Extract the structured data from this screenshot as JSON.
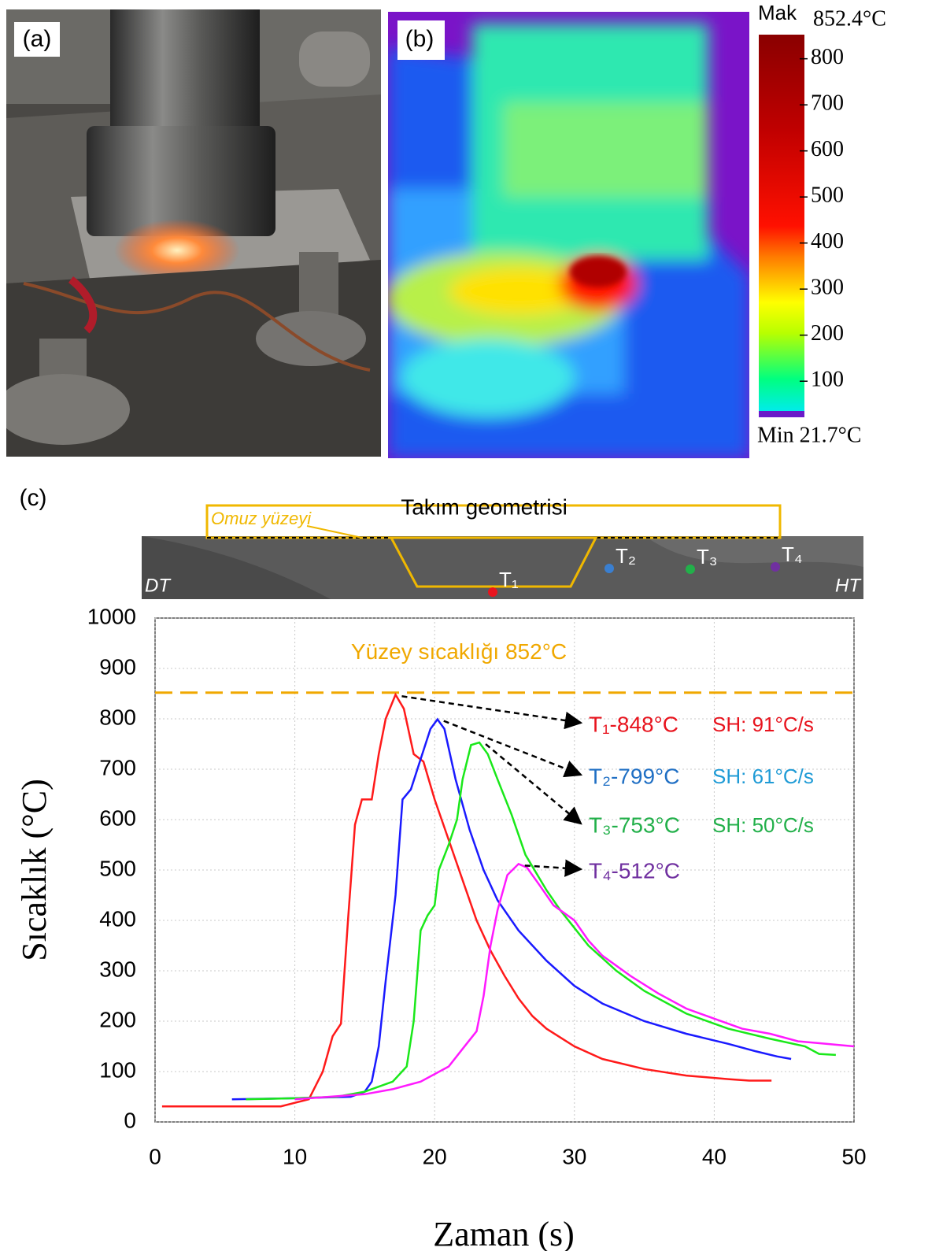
{
  "panels": {
    "a": {
      "label": "(a)"
    },
    "b": {
      "label": "(b)",
      "colorbar": {
        "max_label": "Mak",
        "max_text": "852.4°C",
        "min_text": "Min 21.7°C",
        "lim": [
          21.7,
          852.4
        ],
        "ticks": [
          100,
          200,
          300,
          400,
          500,
          600,
          700,
          800
        ]
      }
    },
    "c": {
      "label": "(c)",
      "geometry": {
        "title": "Takım geometrisi",
        "shoulder": "Omuz yüzeyi",
        "left": "DT",
        "right": "HT"
      }
    }
  },
  "chart_data": {
    "type": "line",
    "xlabel": "Zaman (s)",
    "ylabel": "Sıcaklık (°C)",
    "xlim": [
      0,
      50
    ],
    "ylim": [
      0,
      1000
    ],
    "xticks": [
      0,
      10,
      20,
      30,
      40,
      50
    ],
    "yticks": [
      0,
      100,
      200,
      300,
      400,
      500,
      600,
      700,
      800,
      900,
      1000
    ],
    "grid": true,
    "reference_line": {
      "value": 852,
      "label": "Yüzey sıcaklığı 852°C",
      "color": "#f0a800"
    },
    "series": [
      {
        "name": "T₁",
        "color": "#ff1a1a",
        "marker_color": "#e8141e",
        "label_color": "#e8141e",
        "rate_color": "#e8141e",
        "peak_label": "T₁-848°C",
        "rate_label": "SH: 91°C/s",
        "x": [
          0.5,
          9,
          10,
          11,
          12,
          12.7,
          13.3,
          13.8,
          14.3,
          14.8,
          15.5,
          16,
          16.5,
          17.2,
          17.8,
          18.5,
          19.2,
          20,
          21,
          22,
          23,
          24,
          25,
          26,
          27,
          28,
          30,
          32,
          35,
          38,
          41,
          42.5,
          44.1
        ],
        "values": [
          31,
          31,
          38,
          45,
          100,
          170,
          195,
          400,
          590,
          640,
          640,
          730,
          800,
          848,
          820,
          730,
          715,
          640,
          560,
          480,
          400,
          340,
          290,
          245,
          210,
          185,
          150,
          125,
          105,
          92,
          85,
          82,
          82
        ]
      },
      {
        "name": "T₂",
        "color": "#1a1aff",
        "marker_color": "#3a7fd0",
        "label_color": "#1f6fc4",
        "rate_color": "#1f9bd6",
        "peak_label": "T₂-799°C",
        "rate_label": "SH: 61°C/s",
        "x": [
          5.5,
          10,
          14,
          15,
          15.5,
          16,
          16.5,
          17.2,
          17.7,
          18.3,
          19,
          19.7,
          20.2,
          20.7,
          21.5,
          22.5,
          23.5,
          24.5,
          26,
          28,
          30,
          32,
          35,
          38,
          41,
          43,
          44.5,
          45.5
        ],
        "values": [
          45,
          47,
          50,
          60,
          80,
          150,
          280,
          450,
          640,
          660,
          720,
          780,
          799,
          780,
          680,
          580,
          500,
          440,
          380,
          320,
          270,
          235,
          200,
          175,
          155,
          140,
          130,
          125
        ]
      },
      {
        "name": "T₃",
        "color": "#1ae81a",
        "marker_color": "#22b04a",
        "label_color": "#22b04a",
        "rate_color": "#22b04a",
        "peak_label": "T₃-753°C",
        "rate_label": "SH: 50°C/s",
        "x": [
          6.5,
          10,
          13,
          15,
          17,
          18,
          18.5,
          19,
          19.5,
          20,
          20.3,
          21,
          21.6,
          22,
          22.6,
          23.2,
          23.8,
          24.5,
          25.5,
          26.5,
          28,
          29,
          31,
          33,
          35,
          38,
          41,
          44,
          46.5,
          47.5,
          48.7
        ],
        "values": [
          45,
          47,
          50,
          60,
          80,
          110,
          200,
          380,
          410,
          430,
          500,
          550,
          600,
          680,
          748,
          753,
          730,
          680,
          610,
          530,
          460,
          420,
          350,
          300,
          260,
          215,
          185,
          165,
          150,
          135,
          133
        ]
      },
      {
        "name": "T₄",
        "color": "#ff1aff",
        "marker_color": "#7030a0",
        "label_color": "#7030a0",
        "peak_label": "T₄-512°C",
        "x": [
          10,
          15,
          17,
          19,
          21,
          22,
          23,
          23.5,
          24,
          24.5,
          25.2,
          26,
          26.6,
          27.5,
          28.5,
          30,
          31,
          32,
          34,
          36,
          38,
          40,
          42,
          44,
          46,
          48,
          50
        ],
        "values": [
          45,
          55,
          65,
          80,
          110,
          145,
          180,
          250,
          350,
          420,
          490,
          512,
          505,
          470,
          430,
          400,
          360,
          330,
          290,
          255,
          225,
          205,
          185,
          175,
          160,
          155,
          150
        ]
      }
    ]
  }
}
